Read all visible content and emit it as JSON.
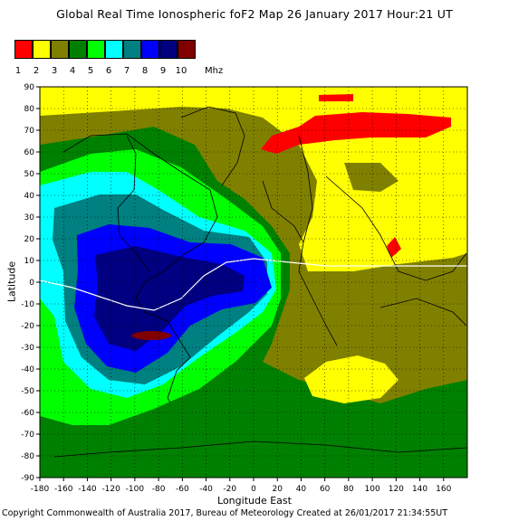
{
  "title": "Global Real Time Ionospheric foF2 Map  26 January 2017 Hour:21 UT",
  "legend": {
    "unit": "Mhz",
    "levels": [
      {
        "label": "1",
        "color": "#ff0000"
      },
      {
        "label": "2",
        "color": "#ffff00"
      },
      {
        "label": "3",
        "color": "#808000"
      },
      {
        "label": "4",
        "color": "#008000"
      },
      {
        "label": "5",
        "color": "#00ff00"
      },
      {
        "label": "6",
        "color": "#00ffff"
      },
      {
        "label": "7",
        "color": "#008080"
      },
      {
        "label": "8",
        "color": "#0000ff"
      },
      {
        "label": "9",
        "color": "#000080"
      },
      {
        "label": "10",
        "color": "#800000"
      }
    ]
  },
  "axes": {
    "xlabel": "Longitude East",
    "ylabel": "Latitude",
    "x_ticks": [
      "-180",
      "-160",
      "-140",
      "-120",
      "-100",
      "-80",
      "-60",
      "-40",
      "-20",
      "0",
      "20",
      "40",
      "60",
      "80",
      "100",
      "120",
      "140",
      "160"
    ],
    "y_ticks": [
      "90",
      "80",
      "70",
      "60",
      "50",
      "40",
      "30",
      "20",
      "10",
      "0",
      "-10",
      "-20",
      "-30",
      "-40",
      "-50",
      "-60",
      "-70",
      "-80",
      "-90"
    ],
    "xlim": [
      -180,
      180
    ],
    "ylim": [
      -90,
      90
    ],
    "grid": true
  },
  "footer": "Copyright Commonwealth of Australia 2017, Bureau of Meteorology    Created at 26/01/2017 21:34:55UT"
}
